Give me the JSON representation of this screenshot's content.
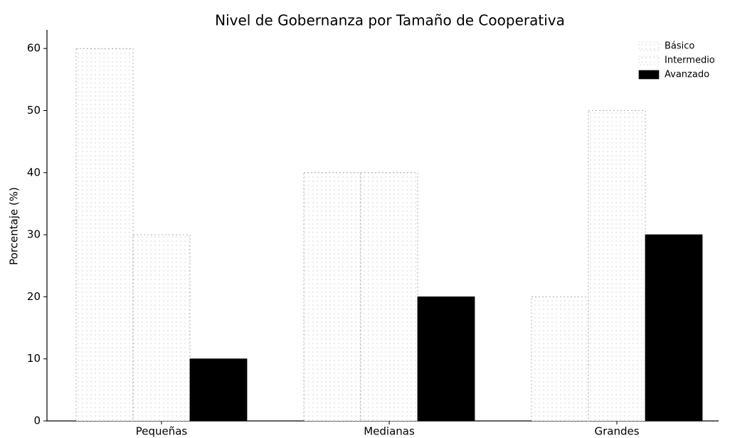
{
  "chart_data": {
    "type": "bar",
    "title": "Nivel de Gobernanza por Tamaño de Cooperativa",
    "ylabel": "Porcentaje (%)",
    "categories": [
      "Pequeñas",
      "Medianas",
      "Grandes"
    ],
    "series": [
      {
        "name": "Básico",
        "color": "#ffffff",
        "values": [
          60,
          40,
          20
        ]
      },
      {
        "name": "Intermedio",
        "color": "#ffffff",
        "values": [
          30,
          40,
          50
        ]
      },
      {
        "name": "Avanzado",
        "color": "#000000",
        "values": [
          10,
          20,
          30
        ]
      }
    ],
    "ylim": [
      0,
      63
    ],
    "yticks": [
      0,
      10,
      20,
      30,
      40,
      50,
      60
    ],
    "grid": false,
    "legend": "upper right"
  }
}
